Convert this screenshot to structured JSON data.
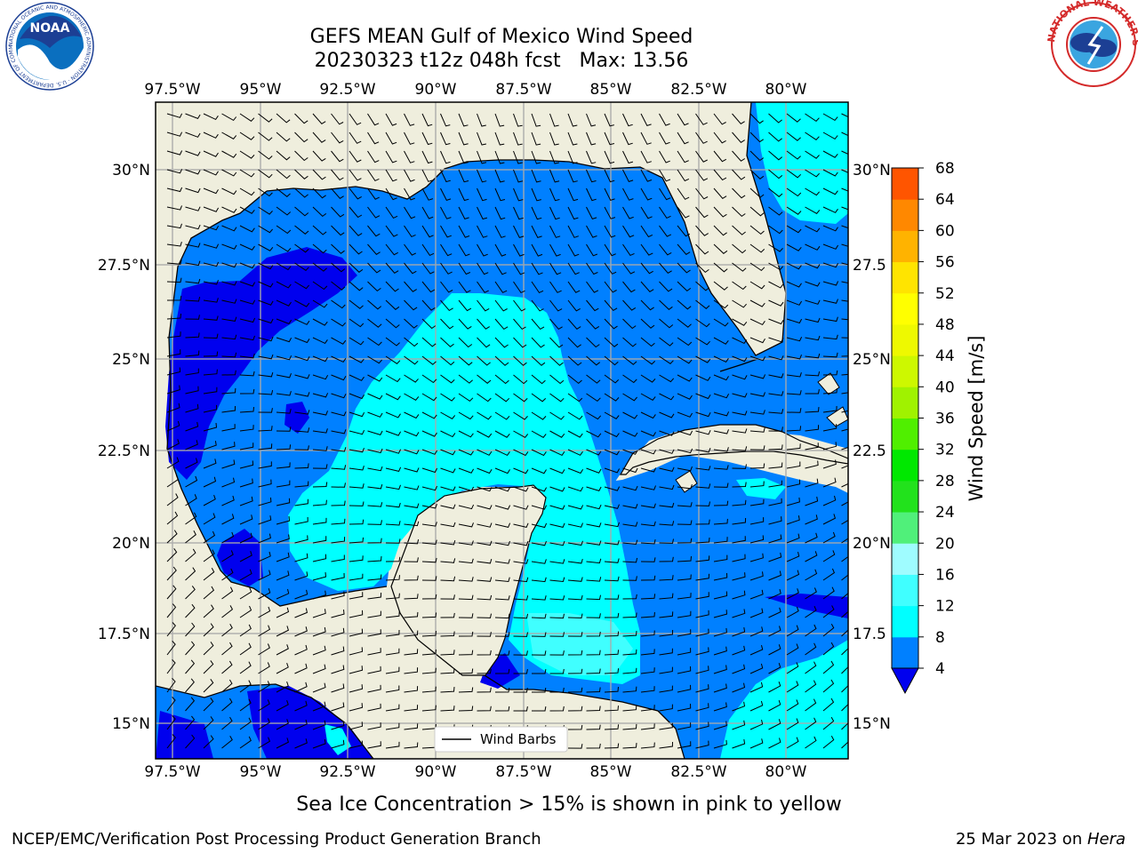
{
  "title": {
    "line1": "GEFS MEAN Gulf of Mexico Wind Speed",
    "line2": "20230323 t12z 048h fcst   Max: 13.56"
  },
  "map": {
    "lon_range": [
      -98.0,
      -78.3
    ],
    "lat_range": [
      14.0,
      31.8
    ],
    "lon_ticks_top": [
      "97.5°W",
      "95°W",
      "92.5°W",
      "90°W",
      "87.5°W",
      "85°W",
      "82.5°W",
      "80°W"
    ],
    "lon_ticks_bottom": [
      "97.5°W",
      "95°W",
      "92.5°W",
      "90°W",
      "87.5°W",
      "85°W",
      "82.5°W",
      "80°W"
    ],
    "lat_ticks_left": [
      "30°N",
      "27.5°N",
      "25°N",
      "22.5°N",
      "20°N",
      "17.5°N",
      "15°N"
    ],
    "lat_ticks_right": [
      "30°N",
      "27.5",
      "25°N",
      "22.5",
      "20°N",
      "17.5",
      "15°N"
    ],
    "gridlines": true,
    "land_color": "#efeedd",
    "legend_label": "Wind Barbs"
  },
  "colorbar": {
    "label": "Wind Speed [m/s]",
    "levels": [
      "4",
      "8",
      "12",
      "16",
      "20",
      "24",
      "28",
      "32",
      "36",
      "40",
      "44",
      "48",
      "52",
      "56",
      "60",
      "64",
      "68"
    ],
    "colors": [
      "#0080ff",
      "#00ffff",
      "#40ffff",
      "#9ffcff",
      "#50f07a",
      "#22e21c",
      "#00e800",
      "#50ef00",
      "#a0f200",
      "#cdf800",
      "#eef900",
      "#ffff00",
      "#ffe400",
      "#ffb300",
      "#ff8800",
      "#ff5500",
      "#ff2600",
      "#ff0000"
    ],
    "extend_min_color": "#0000ee"
  },
  "caption": "Sea Ice Concentration > 15% is shown in pink to yellow",
  "footer": {
    "left": "NCEP/EMC/Verification Post Processing Product Generation Branch",
    "date": "25 Mar 2023 on ",
    "host": "Hera"
  },
  "logos": {
    "left": "NOAA",
    "left_ring": "NATIONAL OCEANIC AND ATMOSPHERIC ADMINISTRATION · U.S. DEPARTMENT OF COMMERCE",
    "right_ring": "NATIONAL WEATHER SERVICE"
  }
}
